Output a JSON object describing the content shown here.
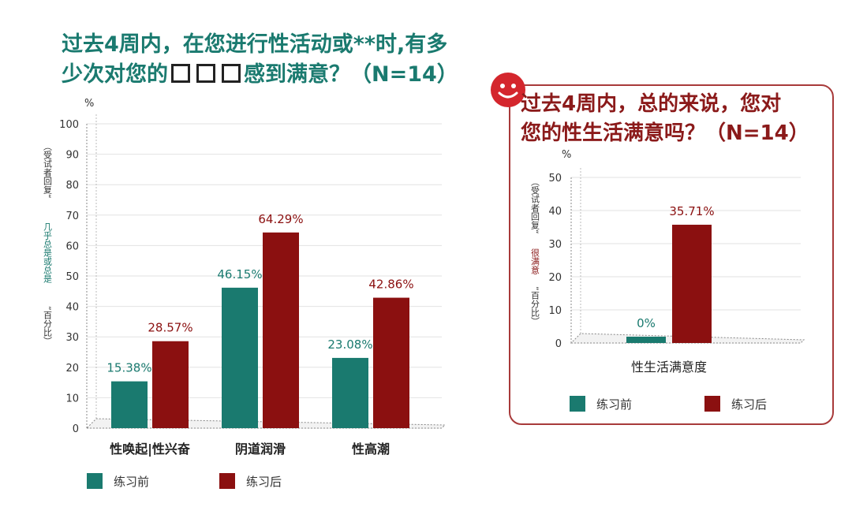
{
  "left": {
    "title_line1": "过去4周内，在您进行性活动或**时,有多",
    "title_line2_a": "少次对您的",
    "title_line2_b": "感到满意？（N=14）",
    "unit": "%",
    "ylabel_a": "（受试者回复“",
    "ylabel_b": "几乎总是或总是",
    "ylabel_c": "”百分比）",
    "legend": [
      "练习前",
      "练习后"
    ]
  },
  "right": {
    "title_line1": "过去4周内，总的来说，您对",
    "title_line2": "您的性生活满意吗？（N=14）",
    "unit": "%",
    "ylabel_a": "（受试者回复“",
    "ylabel_b": "很满意",
    "ylabel_c": "”百分比）",
    "legend": [
      "练习前",
      "练习后"
    ]
  },
  "colors": {
    "before": "#1a7a6f",
    "after": "#8b1010",
    "title_left": "#1a7a6f",
    "title_right": "#8b1a1a"
  },
  "chart_data": [
    {
      "type": "bar",
      "categories": [
        "性唤起|性兴奋",
        "阴道润滑",
        "性高潮"
      ],
      "series": [
        {
          "name": "练习前",
          "values": [
            15.38,
            46.15,
            23.08
          ],
          "labels": [
            "15.38%",
            "46.15%",
            "23.08%"
          ]
        },
        {
          "name": "练习后",
          "values": [
            28.57,
            64.29,
            42.86
          ],
          "labels": [
            "28.57%",
            "64.29%",
            "42.86%"
          ]
        }
      ],
      "ylim": [
        0,
        100
      ],
      "yticks": [
        0,
        10,
        20,
        30,
        40,
        50,
        60,
        70,
        80,
        90,
        100
      ],
      "legend": "bottom-left"
    },
    {
      "type": "bar",
      "categories": [
        "性生活满意度"
      ],
      "series": [
        {
          "name": "练习前",
          "values": [
            0
          ],
          "labels": [
            "0%"
          ]
        },
        {
          "name": "练习后",
          "values": [
            35.71
          ],
          "labels": [
            "35.71%"
          ]
        }
      ],
      "ylim": [
        0,
        50
      ],
      "yticks": [
        0,
        10,
        20,
        30,
        40,
        50
      ],
      "legend": "bottom"
    }
  ]
}
